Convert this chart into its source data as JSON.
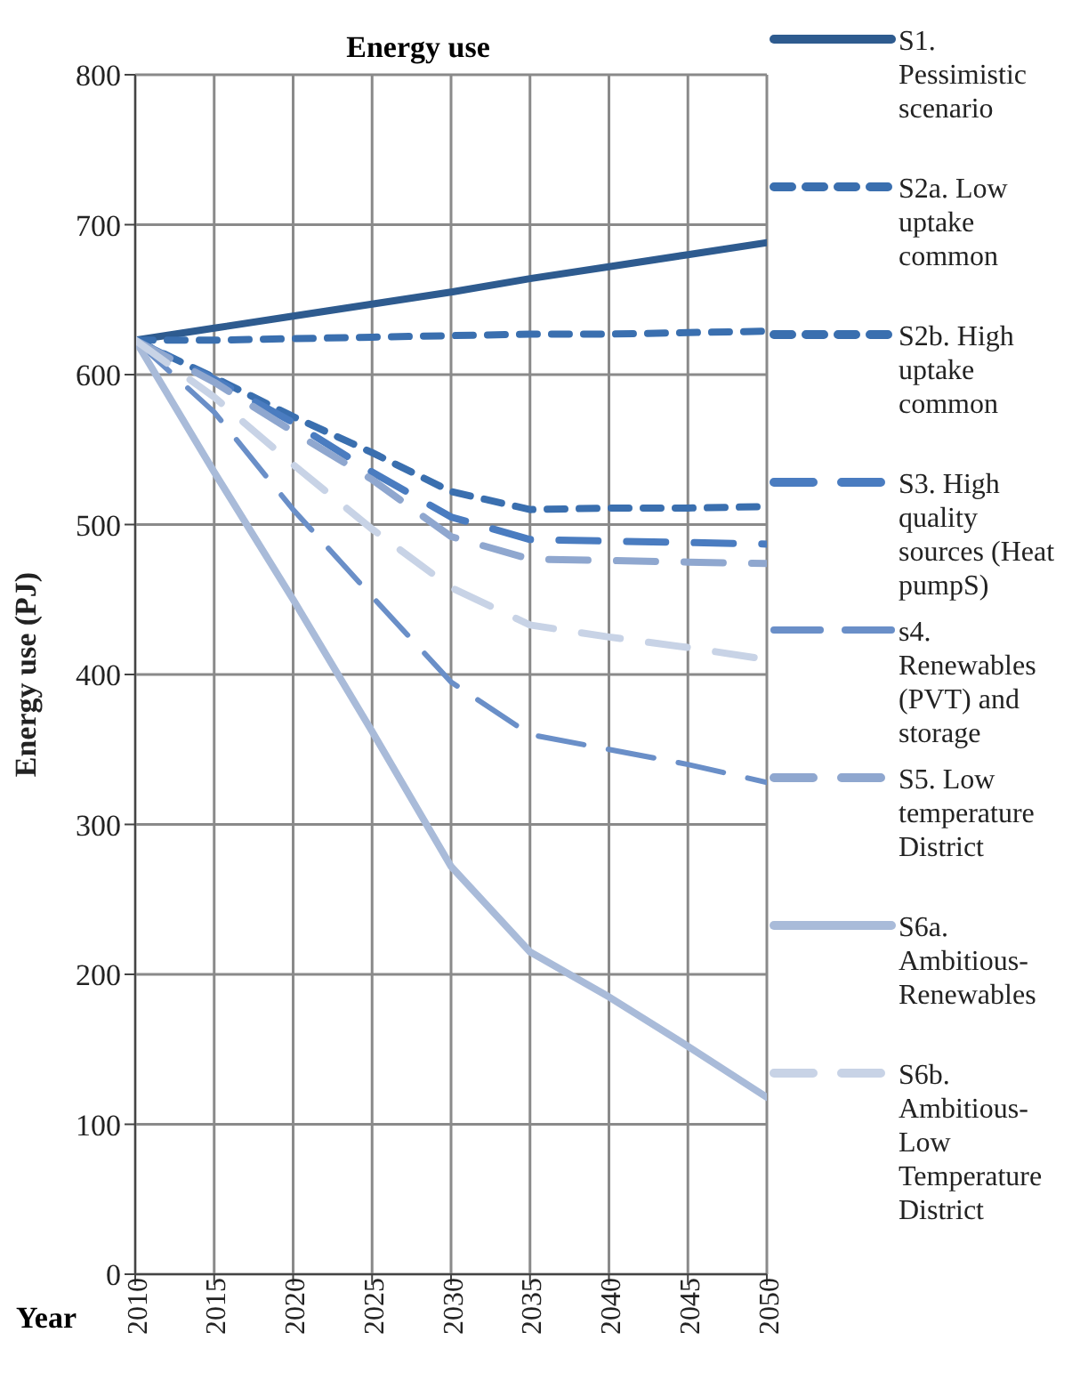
{
  "chart_data": {
    "type": "line",
    "title": "Energy use",
    "xlabel": "Year",
    "ylabel": "Energy use (PJ)",
    "x": [
      2010,
      2015,
      2020,
      2025,
      2030,
      2035,
      2040,
      2045,
      2050
    ],
    "xlim": [
      2010,
      2050
    ],
    "xticks": [
      2010,
      2015,
      2020,
      2025,
      2030,
      2035,
      2040,
      2045,
      2050
    ],
    "ylim": [
      0,
      800
    ],
    "yticks": [
      0,
      100,
      200,
      300,
      400,
      500,
      600,
      700,
      800
    ],
    "grid": true,
    "legend": "right",
    "marker": "none",
    "series": [
      {
        "name": "S1. Pessimistic scenario",
        "color": "#2e5b8f",
        "line_style": "solid",
        "values": [
          623,
          631,
          639,
          647,
          655,
          664,
          672,
          680,
          688
        ]
      },
      {
        "name": "S2a. Low uptake common",
        "color": "#3a6faf",
        "line_style": "dotted",
        "values": [
          623,
          623,
          624,
          625,
          626,
          627,
          627,
          628,
          629
        ]
      },
      {
        "name": "S2b. High uptake common",
        "color": "#3a6faf",
        "line_style": "dotted",
        "values": [
          623,
          598,
          572,
          548,
          522,
          510,
          511,
          511,
          512
        ]
      },
      {
        "name": "S3. High quality sources (Heat pumpS)",
        "color": "#4a7cc0",
        "line_style": "dashed",
        "values": [
          623,
          597,
          568,
          535,
          505,
          490,
          489,
          488,
          487
        ]
      },
      {
        "name": "s4. Renewables (PVT) and storage",
        "color": "#6a8fc8",
        "line_style": "dashed",
        "values": [
          623,
          575,
          510,
          452,
          395,
          360,
          350,
          340,
          328
        ]
      },
      {
        "name": "S5. Low temperature District",
        "color": "#8fa7cf",
        "line_style": "dashed",
        "values": [
          623,
          595,
          562,
          530,
          492,
          477,
          476,
          475,
          474
        ]
      },
      {
        "name": "S6a. Ambitious-Renewables",
        "color": "#a9bbd9",
        "line_style": "solid",
        "values": [
          623,
          535,
          450,
          362,
          272,
          215,
          185,
          152,
          118
        ]
      },
      {
        "name": "S6b. Ambitious-Low Temperature District",
        "color": "#c8d3e6",
        "line_style": "dashed",
        "values": [
          623,
          585,
          540,
          497,
          458,
          433,
          425,
          418,
          410
        ]
      }
    ]
  }
}
